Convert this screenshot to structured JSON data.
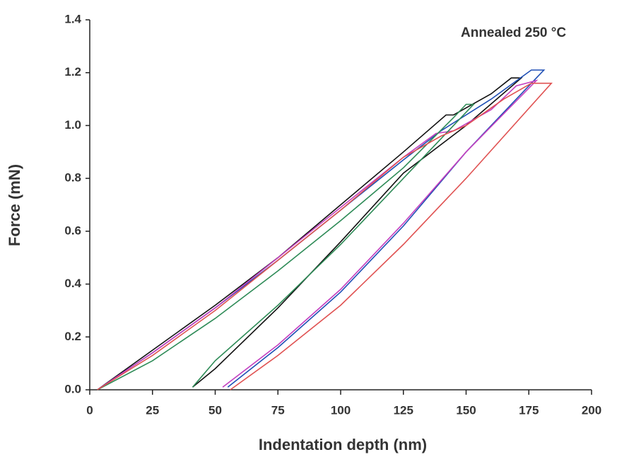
{
  "chart_data": {
    "type": "line",
    "annotation": "Annealed 250 °C",
    "xlabel": "Indentation depth (nm)",
    "ylabel": "Force (mN)",
    "xlim": [
      0,
      200
    ],
    "xticks": [
      0,
      25,
      50,
      75,
      100,
      125,
      150,
      175,
      200
    ],
    "ylim": [
      0,
      1.4
    ],
    "yticks": [
      {
        "value": 0,
        "label": "0.0"
      },
      0.2,
      0.4,
      0.6,
      0.8,
      {
        "value": 1,
        "label": "1.0"
      },
      1.2,
      1.4
    ],
    "series": [
      {
        "color": "#111111",
        "x": [
          3,
          25,
          50,
          75,
          100,
          125,
          142,
          145,
          160,
          168,
          172,
          150,
          125,
          100,
          75,
          50,
          41
        ],
        "values": [
          0,
          0.15,
          0.32,
          0.5,
          0.7,
          0.9,
          1.04,
          1.04,
          1.12,
          1.18,
          1.18,
          1.0,
          0.82,
          0.56,
          0.31,
          0.08,
          0.01
        ]
      },
      {
        "color": "#1f4fb5",
        "x": [
          3,
          25,
          50,
          75,
          100,
          125,
          140,
          160,
          176,
          181,
          150,
          125,
          100,
          75,
          55
        ],
        "values": [
          0,
          0.14,
          0.31,
          0.49,
          0.68,
          0.87,
          0.98,
          1.1,
          1.21,
          1.21,
          0.9,
          0.62,
          0.37,
          0.16,
          0.01
        ]
      },
      {
        "color": "#c43fbf",
        "x": [
          3,
          25,
          50,
          75,
          100,
          125,
          138,
          145,
          160,
          170,
          178,
          150,
          125,
          100,
          75,
          53
        ],
        "values": [
          0,
          0.14,
          0.31,
          0.5,
          0.69,
          0.88,
          0.97,
          0.98,
          1.06,
          1.15,
          1.17,
          0.9,
          0.63,
          0.38,
          0.17,
          0.01
        ]
      },
      {
        "color": "#2e8b57",
        "x": [
          3,
          25,
          50,
          75,
          100,
          125,
          145,
          150,
          153,
          125,
          100,
          75,
          50,
          41
        ],
        "values": [
          0,
          0.11,
          0.27,
          0.45,
          0.64,
          0.84,
          1.03,
          1.08,
          1.08,
          0.8,
          0.55,
          0.32,
          0.11,
          0.01
        ]
      },
      {
        "color": "#e05252",
        "x": [
          3,
          25,
          50,
          75,
          100,
          125,
          140,
          150,
          165,
          176,
          184,
          150,
          125,
          100,
          75,
          56
        ],
        "values": [
          0,
          0.13,
          0.3,
          0.49,
          0.68,
          0.88,
          0.96,
          1.0,
          1.1,
          1.16,
          1.16,
          0.8,
          0.55,
          0.32,
          0.13,
          0
        ]
      }
    ]
  }
}
